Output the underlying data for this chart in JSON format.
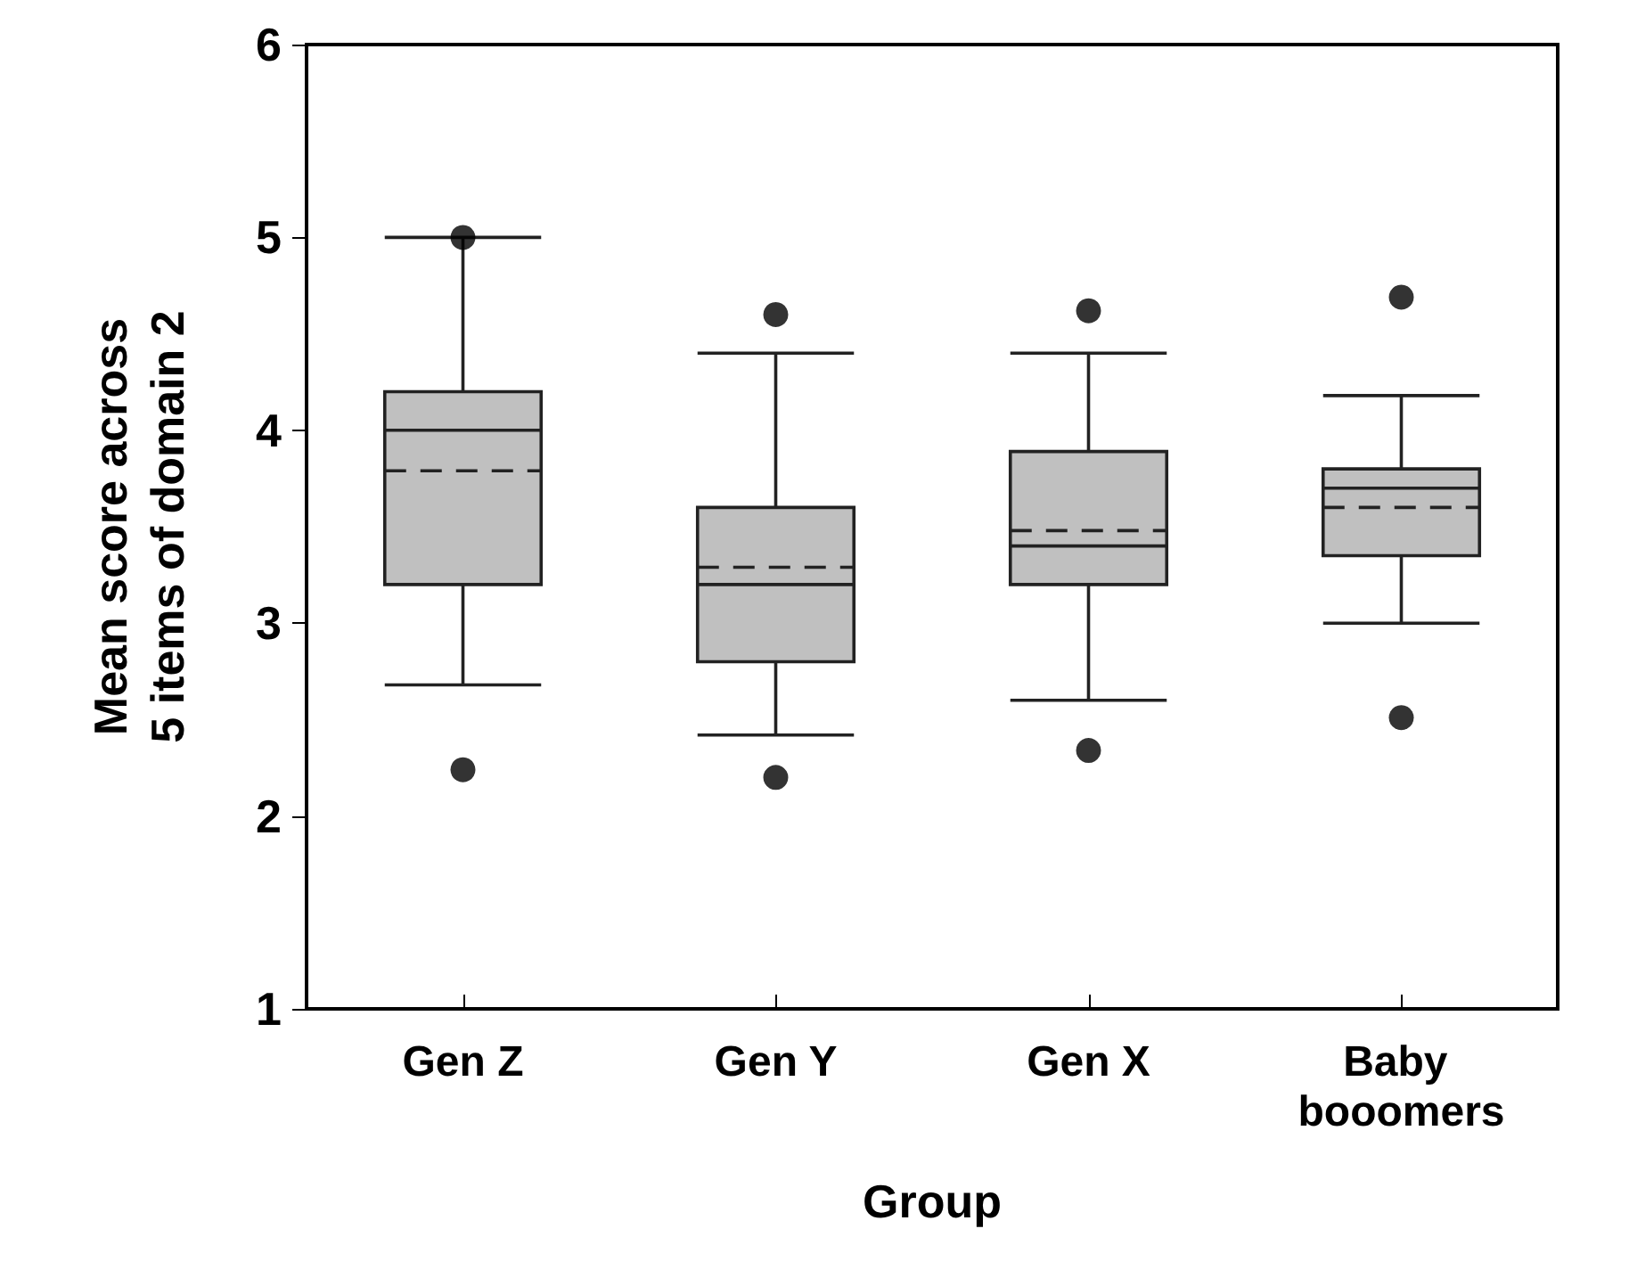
{
  "chart_data": {
    "type": "box",
    "xlabel": "Group",
    "ylabel": "Mean score across\n5 items of domain 2",
    "categories": [
      "Gen Z",
      "Gen Y",
      "Gen X",
      "Baby booomers"
    ],
    "ylim": [
      1,
      6
    ],
    "yticks": [
      1,
      2,
      3,
      4,
      5,
      6
    ],
    "grid": false,
    "series": [
      {
        "color": "#c0c0c0",
        "boxes": [
          {
            "low": 2.68,
            "q1": 3.2,
            "median": 4.0,
            "q3": 4.2,
            "high": 5.0,
            "mean": 3.79,
            "outliers": [
              5.0,
              2.24
            ]
          },
          {
            "low": 2.42,
            "q1": 2.8,
            "median": 3.2,
            "q3": 3.6,
            "high": 4.4,
            "mean": 3.29,
            "outliers": [
              4.6,
              2.2
            ]
          },
          {
            "low": 2.6,
            "q1": 3.2,
            "median": 3.4,
            "q3": 3.89,
            "high": 4.4,
            "mean": 3.48,
            "outliers": [
              4.62,
              2.34
            ]
          },
          {
            "low": 3.0,
            "q1": 3.35,
            "median": 3.7,
            "q3": 3.8,
            "high": 4.18,
            "mean": 3.6,
            "outliers": [
              4.69,
              2.51
            ]
          }
        ]
      }
    ]
  }
}
